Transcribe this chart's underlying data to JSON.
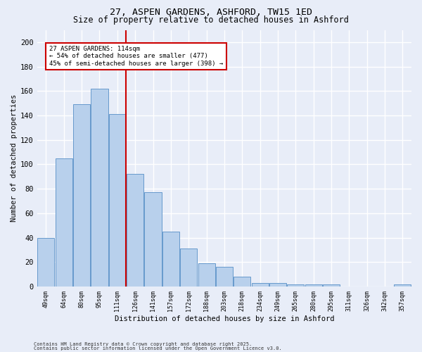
{
  "title_line1": "27, ASPEN GARDENS, ASHFORD, TW15 1ED",
  "title_line2": "Size of property relative to detached houses in Ashford",
  "xlabel": "Distribution of detached houses by size in Ashford",
  "ylabel": "Number of detached properties",
  "categories": [
    "49sqm",
    "64sqm",
    "80sqm",
    "95sqm",
    "111sqm",
    "126sqm",
    "141sqm",
    "157sqm",
    "172sqm",
    "188sqm",
    "203sqm",
    "218sqm",
    "234sqm",
    "249sqm",
    "265sqm",
    "280sqm",
    "295sqm",
    "311sqm",
    "326sqm",
    "342sqm",
    "357sqm"
  ],
  "values": [
    40,
    105,
    149,
    162,
    141,
    92,
    77,
    45,
    31,
    19,
    16,
    8,
    3,
    3,
    2,
    2,
    2,
    0,
    0,
    0,
    2
  ],
  "bar_color": "#b8d0ec",
  "bar_edge_color": "#6699cc",
  "annotation_text": "27 ASPEN GARDENS: 114sqm\n← 54% of detached houses are smaller (477)\n45% of semi-detached houses are larger (398) →",
  "vline_x_index": 4,
  "vline_color": "#cc0000",
  "annotation_box_color": "#cc0000",
  "background_color": "#e8edf8",
  "grid_color": "#ffffff",
  "ylim": [
    0,
    210
  ],
  "yticks": [
    0,
    20,
    40,
    60,
    80,
    100,
    120,
    140,
    160,
    180,
    200
  ],
  "footer_line1": "Contains HM Land Registry data © Crown copyright and database right 2025.",
  "footer_line2": "Contains public sector information licensed under the Open Government Licence v3.0."
}
